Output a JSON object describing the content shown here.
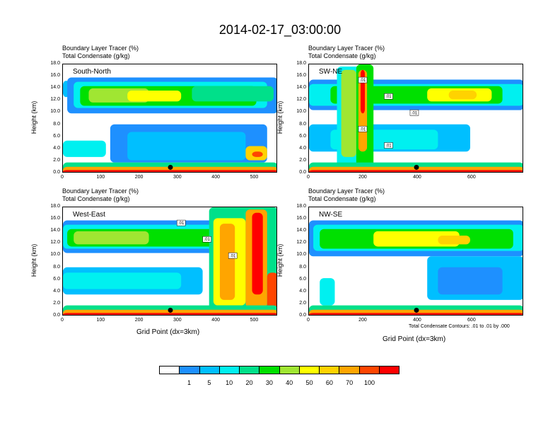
{
  "title": "2014-02-17_03:00:00",
  "xlabel": "Grid Point (dx=3km)",
  "contour_note": "Total Condensate Contours: .01 to .01 by .000",
  "colorbar": {
    "colors": [
      "#ffffff",
      "#1e90ff",
      "#00bfff",
      "#00f0f0",
      "#00e08a",
      "#00e000",
      "#a0e632",
      "#ffff00",
      "#ffd200",
      "#ffa500",
      "#ff4500",
      "#ff0000"
    ],
    "labels": [
      "1",
      "5",
      "10",
      "20",
      "30",
      "40",
      "50",
      "60",
      "70",
      "100"
    ]
  },
  "chart_data": [
    {
      "type": "heatmap",
      "name": "South-North",
      "title_lines": [
        "Boundary Layer Tracer    (%)",
        "Total Condensate    (g/kg)"
      ],
      "ylabel": "Height (km)",
      "ylim": [
        0,
        18
      ],
      "yticks": [
        "0.0",
        "2.0",
        "4.0",
        "6.0",
        "8.0",
        "10.0",
        "12.0",
        "14.0",
        "16.0",
        "18.0"
      ],
      "xlim": [
        0,
        560
      ],
      "xticks": [
        "0",
        "100",
        "200",
        "300",
        "400",
        "500"
      ],
      "marker_x": 280,
      "contour_labels": []
    },
    {
      "type": "heatmap",
      "name": "SW-NE",
      "title_lines": [
        "Boundary Layer Tracer    (%)",
        "Total Condensate    (g/kg)"
      ],
      "ylabel": "Height (km)",
      "ylim": [
        0,
        18
      ],
      "yticks": [
        "0.0",
        "2.0",
        "4.0",
        "6.0",
        "8.0",
        "10.0",
        "12.0",
        "14.0",
        "16.0",
        "18.0"
      ],
      "xlim": [
        0,
        790
      ],
      "xticks": [
        "0",
        "200",
        "400",
        "600"
      ],
      "marker_x": 395,
      "contour_labels": [
        ".01",
        ".01",
        ".01",
        ".01",
        ".01"
      ]
    },
    {
      "type": "heatmap",
      "name": "West-East",
      "title_lines": [
        "Boundary Layer Tracer    (%)",
        "Total Condensate    (g/kg)"
      ],
      "ylabel": "Height (km)",
      "ylim": [
        0,
        18
      ],
      "yticks": [
        "0.0",
        "2.0",
        "4.0",
        "6.0",
        "8.0",
        "10.0",
        "12.0",
        "14.0",
        "16.0",
        "18.0"
      ],
      "xlim": [
        0,
        560
      ],
      "xticks": [
        "0",
        "100",
        "200",
        "300",
        "400",
        "500"
      ],
      "marker_x": 280,
      "contour_labels": [
        ".01",
        ".01",
        ".01"
      ]
    },
    {
      "type": "heatmap",
      "name": "NW-SE",
      "title_lines": [
        "Boundary Layer Tracer    (%)",
        "Total Condensate    (g/kg)"
      ],
      "ylabel": "Height (km)",
      "ylim": [
        0,
        18
      ],
      "yticks": [
        "0.0",
        "2.0",
        "4.0",
        "6.0",
        "8.0",
        "10.0",
        "12.0",
        "14.0",
        "16.0",
        "18.0"
      ],
      "xlim": [
        0,
        790
      ],
      "xticks": [
        "0",
        "200",
        "400",
        "600"
      ],
      "marker_x": 395,
      "contour_labels": []
    }
  ]
}
